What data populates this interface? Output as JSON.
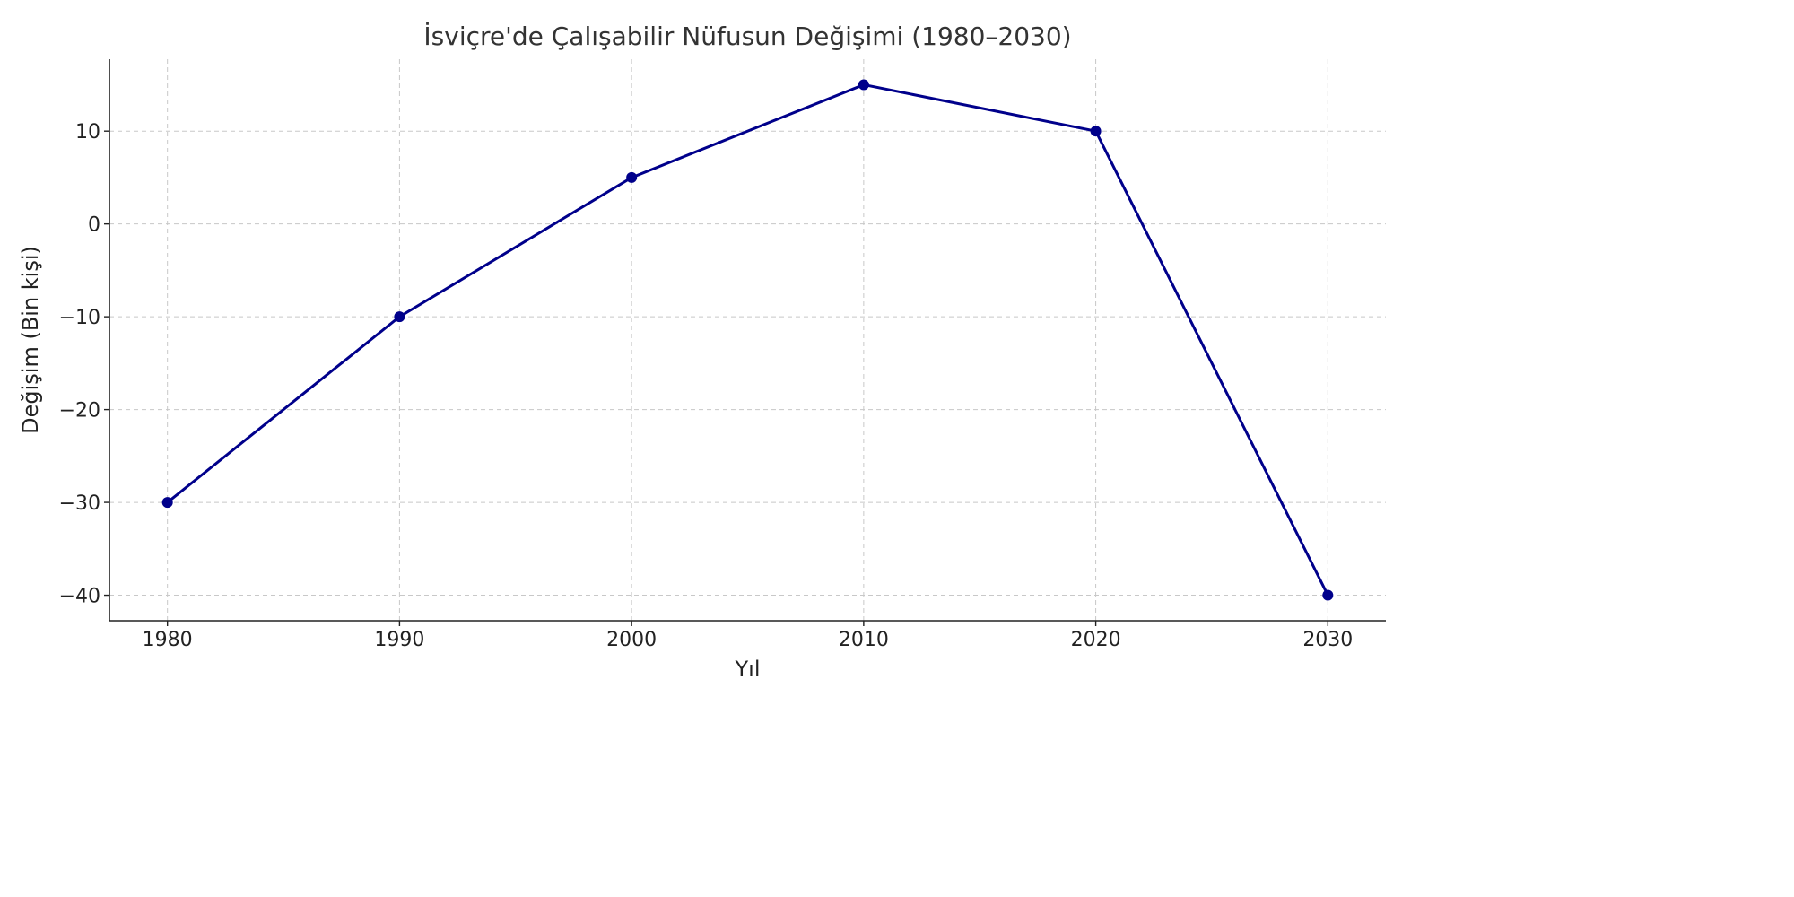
{
  "chart_data": {
    "type": "line",
    "title": "İsviçre'de Çalışabilir Nüfusun Değişimi (1980–2030)",
    "xlabel": "Yıl",
    "ylabel": "Değişim (Bin kişi)",
    "x": [
      1980,
      1990,
      2000,
      2010,
      2020,
      2030
    ],
    "series": [
      {
        "values": [
          -30,
          -10,
          5,
          15,
          10,
          -40
        ],
        "color": "#00008b",
        "marker": "circle"
      }
    ],
    "xticks": [
      1980,
      1990,
      2000,
      2010,
      2020,
      2030
    ],
    "xtick_labels": [
      "1980",
      "1990",
      "2000",
      "2010",
      "2020",
      "2030"
    ],
    "yticks": [
      -40,
      -30,
      -20,
      -10,
      0,
      10
    ],
    "ytick_labels": [
      "−40",
      "−30",
      "−20",
      "−10",
      "0",
      "10"
    ],
    "xlim": [
      1977.5,
      2032.5
    ],
    "ylim": [
      -42.75,
      17.75
    ],
    "grid": true,
    "legend": "none"
  }
}
